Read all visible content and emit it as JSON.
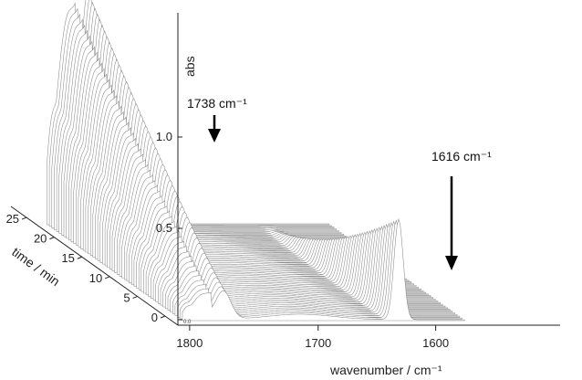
{
  "chart_data": {
    "type": "line",
    "title": "",
    "xlabel": "wavenumber / cm⁻¹",
    "ylabel": "abs",
    "zlabel": "time / min",
    "x_ticks": [
      "1800",
      "1700",
      "1600"
    ],
    "y_ticks": [
      "1.0",
      "0.5",
      "0.0"
    ],
    "z_ticks": [
      "25",
      "20",
      "15",
      "10",
      "5",
      "0"
    ],
    "xlim": [
      1810,
      1545
    ],
    "ylim": [
      0,
      1.25
    ],
    "zlim": [
      0,
      28
    ],
    "grid": false,
    "legend": "none",
    "series_description_count": 57,
    "bands": [
      {
        "center": 1738,
        "label": "1738 cm⁻¹",
        "peak_abs_start": 0.15,
        "peak_abs_end": 1.22
      },
      {
        "center": 1616,
        "label": "1616 cm⁻¹",
        "peak_abs_start": 0.55,
        "peak_abs_end": 0.0
      }
    ],
    "annotations": [
      "1738 cm⁻¹",
      "1616 cm⁻¹"
    ]
  }
}
